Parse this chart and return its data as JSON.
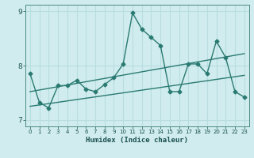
{
  "bg_color": "#d0ecee",
  "grid_color": "#b8dde0",
  "line_color": "#2a7a72",
  "xlabel": "Humidex (Indice chaleur)",
  "ylim": [
    6.88,
    9.12
  ],
  "xlim": [
    -0.5,
    23.5
  ],
  "yticks": [
    7,
    8,
    9
  ],
  "xticks": [
    0,
    1,
    2,
    3,
    4,
    5,
    6,
    7,
    8,
    9,
    10,
    11,
    12,
    13,
    14,
    15,
    16,
    17,
    18,
    19,
    20,
    21,
    22,
    23
  ],
  "series1_x": [
    0,
    1,
    2,
    3,
    4,
    5,
    6,
    7,
    8,
    9,
    10,
    11,
    12,
    13,
    14,
    15,
    16,
    17,
    18,
    19,
    20,
    21,
    22,
    23
  ],
  "series1_y": [
    7.85,
    7.32,
    7.22,
    7.63,
    7.63,
    7.73,
    7.57,
    7.52,
    7.65,
    7.78,
    8.03,
    8.97,
    8.67,
    8.52,
    8.37,
    7.52,
    7.52,
    8.03,
    8.03,
    7.85,
    8.45,
    8.15,
    7.52,
    7.42
  ],
  "trend1_x": [
    0,
    23
  ],
  "trend1_y": [
    7.25,
    7.82
  ],
  "trend2_x": [
    0,
    23
  ],
  "trend2_y": [
    7.52,
    8.22
  ],
  "marker": "D",
  "markersize": 2.5,
  "linewidth": 1.0
}
